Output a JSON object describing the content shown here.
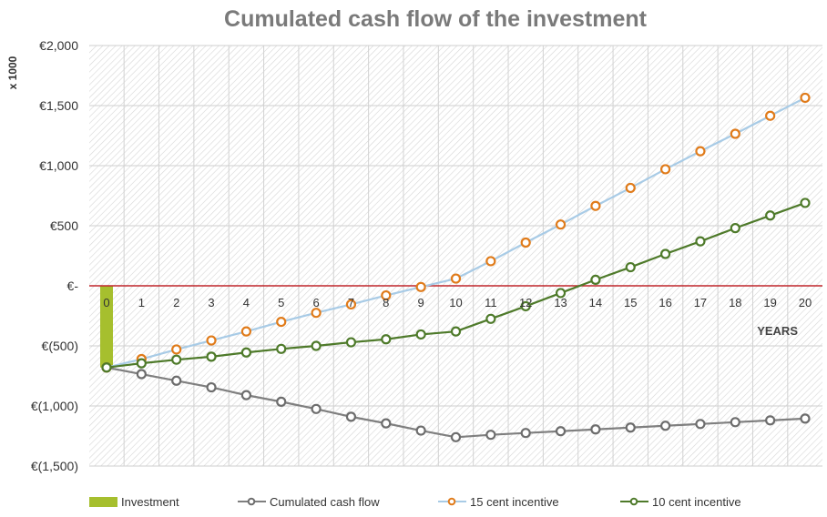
{
  "chart_data": {
    "type": "line",
    "title": "Cumulated cash flow of the investment",
    "ylabel": "x 1000",
    "xlabel": "YEARS",
    "ylim": [
      -1500,
      2000
    ],
    "ytick_values": [
      2000,
      1500,
      1000,
      500,
      0,
      -500,
      -1000,
      -1500
    ],
    "ytick_labels": [
      "€2,000",
      "€1,500",
      "€1,000",
      "€500",
      "€-",
      "€(500)",
      "€(1,000)",
      "€(1,500)"
    ],
    "x": [
      0,
      1,
      2,
      3,
      4,
      5,
      6,
      7,
      8,
      9,
      10,
      11,
      12,
      13,
      14,
      15,
      16,
      17,
      18,
      19,
      20
    ],
    "investment": {
      "name": "Investment",
      "x": 0,
      "value": -680,
      "color": "#a6bf2e"
    },
    "series": [
      {
        "name": "Cumulated cash flow",
        "line_color": "#7f7f7f",
        "marker_color": "#6d6d6d",
        "values": [
          -680,
          -735,
          -790,
          -845,
          -910,
          -965,
          -1025,
          -1090,
          -1145,
          -1205,
          -1260,
          -1240,
          -1225,
          -1210,
          -1195,
          -1180,
          -1165,
          -1150,
          -1135,
          -1120,
          -1105
        ]
      },
      {
        "name": "15 cent incentive",
        "line_color": "#a8cbe6",
        "marker_color": "#e07b1a",
        "values": [
          -680,
          -610,
          -530,
          -455,
          -380,
          -300,
          -225,
          -155,
          -80,
          -10,
          60,
          205,
          360,
          510,
          665,
          815,
          970,
          1120,
          1265,
          1415,
          1565
        ]
      },
      {
        "name": "10 cent incentive",
        "line_color": "#4e7a2a",
        "marker_color": "#4e7a2a",
        "values": [
          -680,
          -645,
          -615,
          -590,
          -555,
          -525,
          -500,
          -470,
          -445,
          -405,
          -380,
          -275,
          -170,
          -60,
          50,
          155,
          265,
          370,
          480,
          585,
          690
        ]
      }
    ],
    "zero_line_color": "#c0262b",
    "grid": true,
    "legend_position": "bottom"
  }
}
